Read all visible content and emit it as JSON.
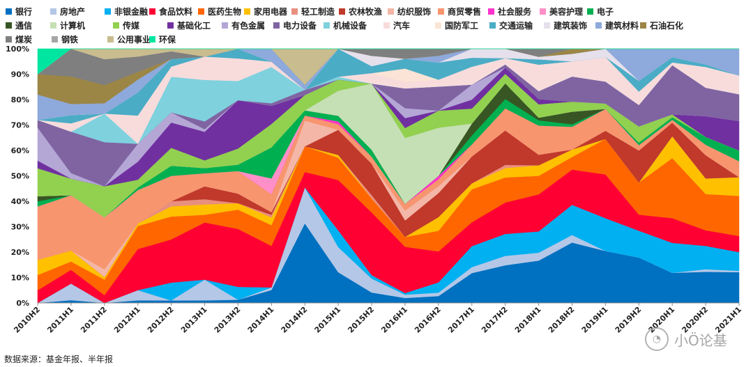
{
  "chart_data": {
    "type": "area",
    "stacked": true,
    "normalized": true,
    "x": [
      "2010H2",
      "2011H1",
      "2011H2",
      "2012H1",
      "2012H2",
      "2013H1",
      "2013H2",
      "2014H1",
      "2014H2",
      "2015H1",
      "2015H2",
      "2016H1",
      "2016H2",
      "2017H1",
      "2017H2",
      "2018H1",
      "2018H2",
      "2019H1",
      "2019H2",
      "2020H1",
      "2020H2",
      "2021H1"
    ],
    "yticks": [
      "0%",
      "10%",
      "20%",
      "30%",
      "40%",
      "50%",
      "60%",
      "70%",
      "80%",
      "90%",
      "100%"
    ],
    "ylim": [
      0,
      100
    ],
    "legend_position": "top",
    "series": [
      {
        "name": "银行",
        "color": "#0070C0",
        "values": [
          0,
          1,
          0,
          1,
          1,
          1,
          1,
          5,
          31,
          11,
          3,
          1.5,
          2,
          10,
          12,
          16,
          24,
          19,
          17,
          11,
          12,
          11.5
        ]
      },
      {
        "name": "房地产",
        "color": "#B4C7E7",
        "values": [
          0,
          6,
          0,
          4,
          0,
          8,
          0,
          1,
          14,
          9,
          4,
          1,
          1,
          2,
          3,
          3,
          3,
          0,
          0,
          0,
          1,
          0.5
        ]
      },
      {
        "name": "非银金融",
        "color": "#00B0F0",
        "values": [
          0,
          0,
          0,
          0,
          7,
          0,
          4,
          0,
          0,
          6,
          1,
          0.5,
          3,
          7,
          7,
          8,
          12,
          12,
          10,
          11,
          9,
          7
        ]
      },
      {
        "name": "食品饮料",
        "color": "#FF0033",
        "values": [
          5,
          5,
          3,
          16,
          17,
          22,
          18,
          16,
          6,
          18,
          18,
          14,
          9,
          8,
          10,
          14,
          14,
          16,
          6,
          9,
          6,
          6
        ]
      },
      {
        "name": "医药生物",
        "color": "#FF6600",
        "values": [
          6,
          3,
          6,
          9,
          9,
          3,
          6,
          8,
          10,
          8,
          4,
          3,
          6,
          11,
          8,
          7,
          5,
          13,
          12,
          22,
          14,
          15
        ]
      },
      {
        "name": "家用电器",
        "color": "#FFC000",
        "values": [
          6,
          4,
          1,
          1,
          4,
          4,
          2,
          3,
          0,
          1,
          0,
          0,
          4,
          2,
          3,
          4,
          3,
          0,
          0,
          8,
          6,
          7
        ]
      },
      {
        "name": "轻工制造",
        "color": "#E98F7F",
        "values": [
          0,
          0,
          0,
          0,
          2,
          2,
          0,
          1,
          0,
          0,
          1,
          0,
          0,
          0,
          1,
          0,
          0,
          0,
          0,
          0,
          0,
          0
        ]
      },
      {
        "name": "农林牧渔",
        "color": "#C0392B",
        "values": [
          0,
          0,
          0,
          0,
          0,
          5,
          3,
          1,
          0,
          9,
          9,
          5,
          7,
          9,
          11,
          4,
          0,
          3,
          12,
          5,
          9,
          0
        ]
      },
      {
        "name": "纺织服饰",
        "color": "#F4B6A6",
        "values": [
          0,
          0,
          3,
          0,
          0,
          0,
          0,
          0,
          10,
          0,
          0,
          3,
          2,
          0,
          0,
          0,
          0,
          0,
          0,
          0,
          0,
          0
        ]
      },
      {
        "name": "商贸零售",
        "color": "#F7956F",
        "values": [
          21,
          20,
          20,
          13,
          10,
          5,
          7,
          7,
          2,
          2,
          2,
          2,
          2,
          4,
          7,
          11,
          9,
          8,
          2,
          1,
          4,
          6
        ]
      },
      {
        "name": "社会服务",
        "color": "#FF33CC",
        "values": [
          0,
          0,
          0,
          0,
          0,
          0,
          0,
          0,
          0,
          1,
          0,
          0,
          1,
          0,
          0,
          0,
          0,
          0,
          0,
          0,
          0,
          0
        ]
      },
      {
        "name": "美容护理",
        "color": "#FF8FC8",
        "values": [
          0,
          0,
          0,
          0,
          0,
          0,
          0,
          6,
          0,
          0,
          0,
          0,
          0,
          0,
          0,
          0,
          0,
          0,
          0,
          0,
          0,
          0
        ]
      },
      {
        "name": "电子",
        "color": "#00B050",
        "values": [
          2,
          0,
          0,
          1,
          4,
          2,
          2,
          12,
          2,
          2,
          2,
          0,
          0,
          3,
          3,
          2,
          1,
          0,
          1,
          1,
          3,
          4
        ]
      },
      {
        "name": "通信",
        "color": "#375623",
        "values": [
          2,
          0,
          0,
          0,
          0,
          0,
          0,
          0,
          0,
          0,
          0,
          0,
          0,
          4,
          5,
          1,
          5,
          0,
          0,
          0,
          0,
          0
        ]
      },
      {
        "name": "计算机",
        "color": "#C5E0B4",
        "values": [
          0,
          0,
          0,
          0,
          0,
          0,
          0,
          0,
          0,
          9,
          19,
          20,
          14,
          0,
          0,
          0,
          0,
          0,
          0,
          0,
          0,
          0
        ]
      },
      {
        "name": "传媒",
        "color": "#92D050",
        "values": [
          11,
          6,
          12,
          3,
          7,
          3,
          5,
          9,
          6,
          4,
          0,
          3,
          5,
          5,
          3,
          5,
          4,
          2,
          6,
          1,
          0,
          0
        ]
      },
      {
        "name": "基础化工",
        "color": "#7030A0",
        "values": [
          3,
          0,
          0,
          7,
          10,
          11,
          15,
          7,
          0,
          0,
          0,
          3,
          0,
          3,
          2,
          2,
          0,
          0,
          0,
          0,
          8,
          11
        ]
      },
      {
        "name": "有色金属",
        "color": "#B4A7D6",
        "values": [
          13,
          2,
          0,
          7,
          4,
          1,
          0,
          0,
          0,
          0,
          0,
          3,
          0,
          5,
          0,
          0,
          0,
          0,
          0,
          0,
          0,
          0
        ]
      },
      {
        "name": "电力设备",
        "color": "#8064A2",
        "values": [
          3,
          15,
          17,
          0,
          0,
          3,
          0,
          1,
          2,
          0,
          0,
          6,
          7,
          0,
          1,
          3,
          10,
          8,
          8,
          18,
          11,
          10
        ]
      },
      {
        "name": "机械设备",
        "color": "#7FD1DE",
        "values": [
          0,
          0,
          11,
          0,
          14,
          16,
          6,
          14,
          0,
          1,
          0,
          0,
          0,
          0,
          0,
          0,
          0,
          0,
          0,
          0,
          0,
          0
        ]
      },
      {
        "name": "汽车",
        "color": "#F8DCDC",
        "values": [
          0,
          3,
          0,
          11,
          4,
          9,
          7,
          2,
          0,
          0,
          3,
          2,
          2,
          6,
          2,
          10,
          6,
          9,
          5,
          1,
          8,
          7
        ]
      },
      {
        "name": "国防军工",
        "color": "#FBE4D5",
        "values": [
          0,
          0,
          0,
          0,
          0,
          0,
          0,
          0,
          0,
          0,
          0,
          4,
          0,
          0,
          0,
          0,
          0,
          0,
          0,
          0,
          0,
          0
        ]
      },
      {
        "name": "交通运输",
        "color": "#4BACC6",
        "values": [
          0,
          3,
          0,
          9,
          3,
          0,
          3,
          0,
          0,
          10,
          2,
          3,
          5,
          3,
          0,
          2,
          0,
          0,
          4,
          2,
          1,
          0
        ]
      },
      {
        "name": "建筑装饰",
        "color": "#E6E0EC",
        "values": [
          0,
          0,
          0,
          0,
          0,
          0,
          0,
          0,
          0,
          0,
          3,
          0,
          0,
          3,
          3,
          1,
          3,
          3,
          0,
          0,
          0,
          0
        ]
      },
      {
        "name": "建筑材料",
        "color": "#8EA9DB",
        "values": [
          10,
          4,
          4,
          5,
          0,
          0,
          0,
          5,
          2,
          0,
          0,
          0,
          2,
          0,
          0,
          0,
          0,
          0,
          12,
          3,
          6,
          10
        ]
      },
      {
        "name": "石油石化",
        "color": "#9C8646",
        "values": [
          8,
          10,
          7,
          3,
          0,
          0,
          0,
          0,
          0,
          0,
          0,
          0,
          0,
          0,
          0,
          0,
          2,
          0,
          0,
          0,
          0,
          0
        ]
      },
      {
        "name": "煤炭",
        "color": "#7F7F7F",
        "values": [
          0,
          10,
          10,
          6,
          3,
          0,
          0,
          0,
          0,
          0,
          2,
          3,
          2,
          0,
          0,
          3,
          0,
          0,
          0,
          0,
          0,
          0
        ]
      },
      {
        "name": "钢铁",
        "color": "#A6A6A6",
        "values": [
          0,
          0,
          0,
          0,
          0,
          0,
          0,
          0,
          0,
          0,
          0,
          0,
          0,
          0,
          0,
          0,
          0,
          0,
          0,
          0,
          0,
          0
        ]
      },
      {
        "name": "公用事业",
        "color": "#C9BC8E",
        "values": [
          0,
          0,
          4,
          3,
          1,
          3,
          0,
          0,
          14,
          0,
          0,
          0,
          0,
          0,
          0,
          0,
          0,
          0,
          0,
          0,
          0,
          0
        ]
      },
      {
        "name": "环保",
        "color": "#00E6A0",
        "values": [
          10,
          0,
          0,
          0,
          0,
          0,
          0,
          0,
          0,
          0,
          0,
          0,
          0,
          0,
          0,
          0,
          0,
          0,
          0,
          0,
          0,
          0
        ]
      }
    ]
  },
  "source_text": "数据来源：基金年报、半年报",
  "watermark_text": "小Ö论基",
  "watermark_icon": "wechat-icon"
}
